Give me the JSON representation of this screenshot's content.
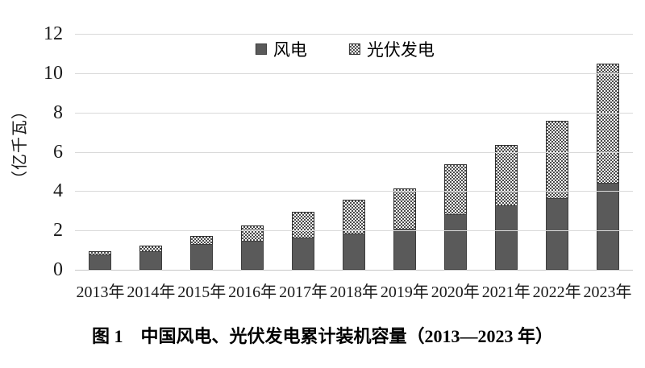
{
  "caption": "图 1　中国风电、光伏发电累计装机容量（2013—2023 年）",
  "chart_data": {
    "type": "bar",
    "stacked": true,
    "title": "图 1　中国风电、光伏发电累计装机容量（2013—2023 年）",
    "xlabel": "",
    "ylabel": "（亿千瓦）",
    "ylim": [
      0,
      12
    ],
    "ytick_step": 2,
    "y_ticks": [
      "0",
      "2",
      "4",
      "6",
      "8",
      "10",
      "12"
    ],
    "grid": true,
    "legend_position": "top-center",
    "categories": [
      "2013年",
      "2014年",
      "2015年",
      "2016年",
      "2017年",
      "2018年",
      "2019年",
      "2020年",
      "2021年",
      "2022年",
      "2023年"
    ],
    "series": [
      {
        "name": "风电",
        "pattern": "solid",
        "color": "#5a5a5a",
        "values": [
          0.77,
          0.96,
          1.31,
          1.49,
          1.64,
          1.84,
          2.1,
          2.82,
          3.28,
          3.65,
          4.41
        ]
      },
      {
        "name": "光伏发电",
        "pattern": "dotted",
        "color": "#4a4a4a",
        "values": [
          0.19,
          0.28,
          0.43,
          0.77,
          1.3,
          1.74,
          2.04,
          2.53,
          3.06,
          3.93,
          6.09
        ]
      }
    ],
    "totals": [
      0.96,
      1.24,
      1.74,
      2.26,
      2.94,
      3.58,
      4.14,
      5.35,
      6.34,
      7.58,
      10.5
    ],
    "colors": {
      "wind_fill": "#5a5a5a",
      "solar_dot": "#4a4a4a",
      "solar_bg": "#f7f7f7",
      "gridline": "#d9d9d9",
      "text": "#000000"
    }
  }
}
